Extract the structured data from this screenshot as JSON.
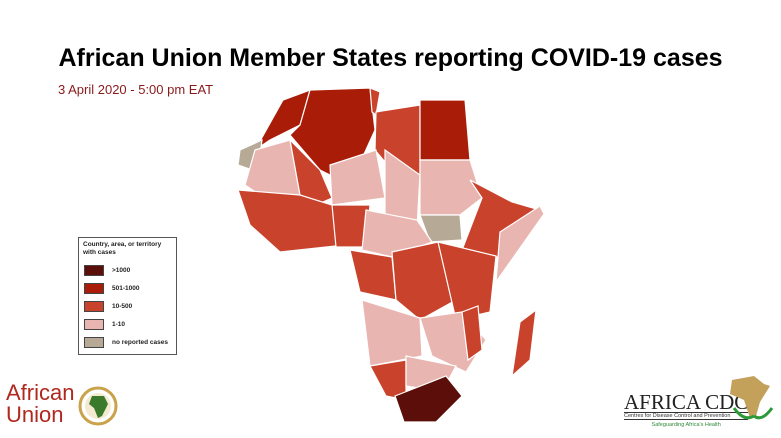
{
  "title": "African Union Member States reporting COVID-19 cases",
  "subtitle": "3 April 2020 - 5:00 pm EAT",
  "legend": {
    "heading": "Country, area, or territory with cases",
    "items": [
      {
        "label": ">1000",
        "color": "#5c0f0a"
      },
      {
        "label": "501-1000",
        "color": "#a81c08"
      },
      {
        "label": "10-500",
        "color": "#c9432c"
      },
      {
        "label": "1-10",
        "color": "#e9b5b0"
      },
      {
        "label": "no reported cases",
        "color": "#b6a996"
      }
    ]
  },
  "logos": {
    "african_union": "African Union",
    "africa_cdc": {
      "name": "AFRICA CDC",
      "tagline": "Centres for Disease Control and Prevention",
      "motto": "Safeguarding Africa's Health"
    }
  }
}
